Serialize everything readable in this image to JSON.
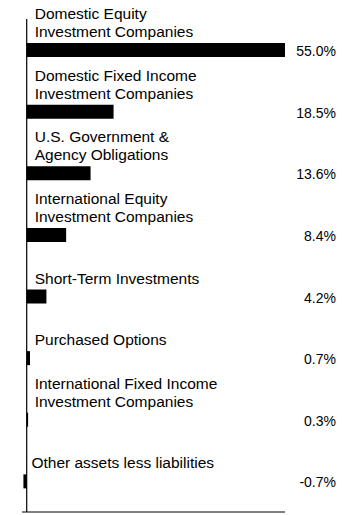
{
  "chart_data": {
    "type": "bar",
    "orientation": "horizontal",
    "categories": [
      "Domestic Equity\nInvestment Companies",
      "Domestic Fixed Income\nInvestment Companies",
      "U.S. Government &\nAgency Obligations",
      "International Equity\nInvestment Companies",
      "Short-Term Investments",
      "Purchased Options",
      "International Fixed Income\nInvestment Companies",
      "Other assets less liabilities"
    ],
    "values": [
      55.0,
      18.5,
      13.6,
      8.4,
      4.2,
      0.7,
      0.3,
      -0.7
    ],
    "value_labels": [
      "55.0%",
      "18.5%",
      "13.6%",
      "8.4%",
      "4.2%",
      "0.7%",
      "0.3%",
      "-0.7%"
    ],
    "color": "#000000",
    "xlim": [
      -1,
      55
    ],
    "tick_labels": false,
    "data_labels": true
  }
}
